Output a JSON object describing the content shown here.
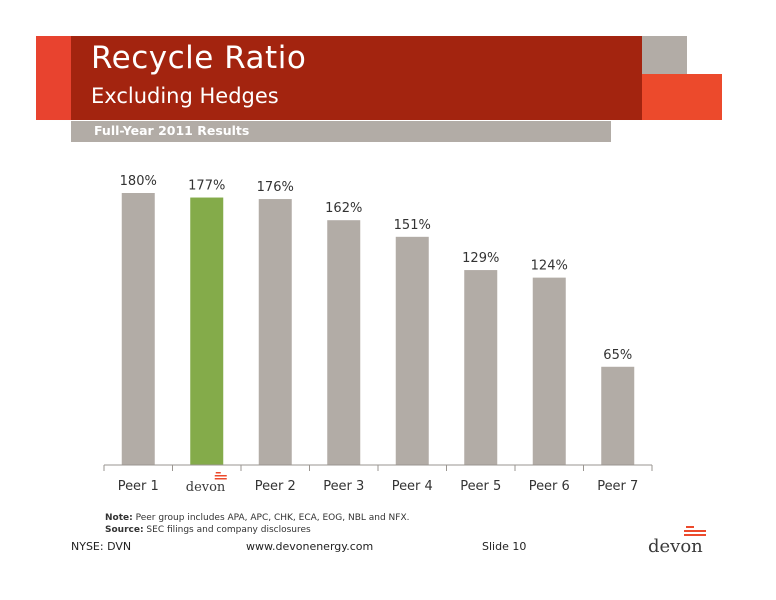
{
  "header": {
    "title": "Recycle Ratio",
    "subtitle": "Excluding Hedges",
    "period": "Full-Year 2011 Results"
  },
  "colors": {
    "header_dark": "#a3240f",
    "header_light": "#e8432f",
    "accent_orange": "#ec4a2c",
    "bar_gray": "#b2aca6",
    "bar_highlight": "#84ab4a"
  },
  "chart_data": {
    "type": "bar",
    "categories": [
      "Peer 1",
      "devon",
      "Peer 2",
      "Peer 3",
      "Peer 4",
      "Peer 5",
      "Peer 6",
      "Peer 7"
    ],
    "values": [
      180,
      177,
      176,
      162,
      151,
      129,
      124,
      65
    ],
    "value_labels": [
      "180%",
      "177%",
      "176%",
      "162%",
      "151%",
      "129%",
      "124%",
      "65%"
    ],
    "highlight_index": 1,
    "ylim": [
      0,
      185
    ],
    "grid": false,
    "legend": "none"
  },
  "notes": {
    "note_label": "Note:",
    "note_text": " Peer group includes APA, APC, CHK, ECA, EOG, NBL and NFX.",
    "source_label": "Source:",
    "source_text": " SEC filings and company disclosures"
  },
  "footer": {
    "ticker": "NYSE: DVN",
    "website": "www.devonenergy.com",
    "slide": "Slide 10",
    "logo_text": "devon"
  }
}
